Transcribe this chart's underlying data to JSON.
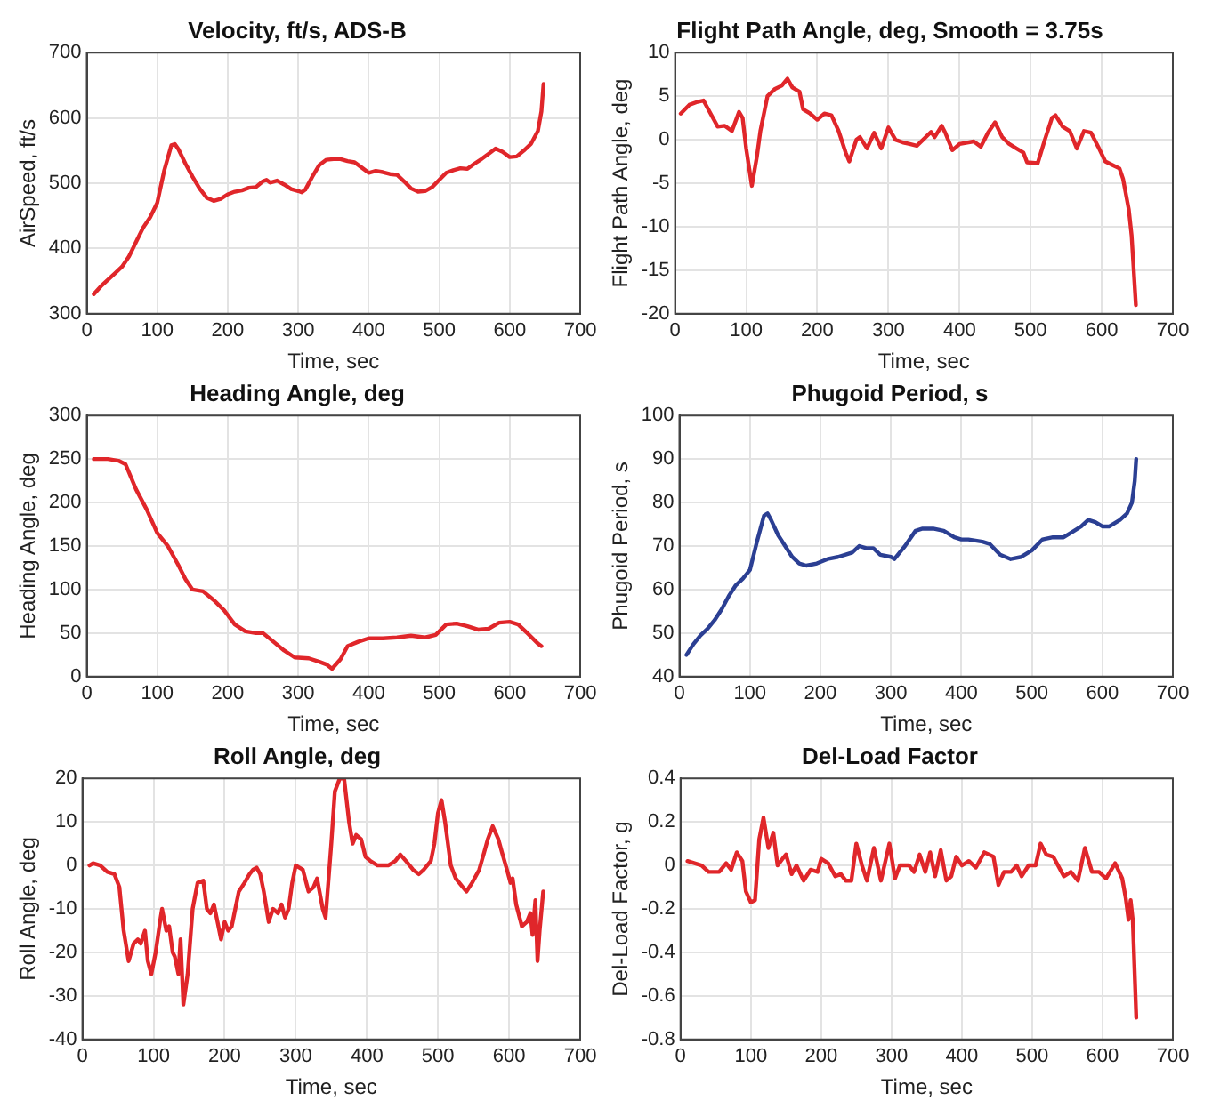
{
  "chart_data": [
    {
      "type": "line",
      "title": "Velocity, ft/s, ADS-B",
      "xlabel": "Time, sec",
      "ylabel": "AirSpeed, ft/s",
      "xlim": [
        0,
        700
      ],
      "xticks": [
        0,
        100,
        200,
        300,
        400,
        500,
        600,
        700
      ],
      "ylim": [
        300,
        700
      ],
      "yticks": [
        300,
        400,
        500,
        600,
        700
      ],
      "grid": true,
      "legend": false,
      "marker": "none",
      "series": [
        {
          "color": "#e0262a",
          "x": [
            10,
            20,
            30,
            40,
            50,
            60,
            70,
            80,
            90,
            100,
            110,
            120,
            125,
            130,
            140,
            150,
            160,
            170,
            180,
            190,
            200,
            210,
            220,
            230,
            240,
            250,
            255,
            260,
            270,
            280,
            290,
            300,
            305,
            310,
            320,
            330,
            340,
            350,
            360,
            370,
            380,
            390,
            400,
            410,
            420,
            430,
            440,
            450,
            460,
            470,
            480,
            490,
            500,
            510,
            520,
            530,
            540,
            550,
            560,
            570,
            580,
            590,
            600,
            610,
            620,
            630,
            640,
            645,
            648
          ],
          "values": [
            330,
            342,
            352,
            362,
            372,
            388,
            410,
            432,
            448,
            470,
            520,
            558,
            560,
            552,
            530,
            510,
            492,
            478,
            473,
            476,
            483,
            487,
            489,
            493,
            494,
            503,
            505,
            501,
            504,
            498,
            491,
            488,
            486,
            490,
            510,
            528,
            536,
            537,
            537,
            534,
            532,
            524,
            516,
            519,
            517,
            514,
            513,
            503,
            492,
            487,
            488,
            494,
            505,
            516,
            520,
            523,
            522,
            530,
            537,
            545,
            553,
            548,
            540,
            541,
            550,
            560,
            580,
            610,
            652
          ]
        }
      ]
    },
    {
      "type": "line",
      "title": "Flight Path Angle, deg, Smooth = 3.75s",
      "xlabel": "Time, sec",
      "ylabel": "Flight Path Angle, deg",
      "xlim": [
        0,
        700
      ],
      "xticks": [
        0,
        100,
        200,
        300,
        400,
        500,
        600,
        700
      ],
      "ylim": [
        -20,
        10
      ],
      "yticks": [
        -20,
        -15,
        -10,
        -5,
        0,
        5,
        10
      ],
      "grid": true,
      "legend": false,
      "marker": "none",
      "series": [
        {
          "color": "#e0262a",
          "x": [
            8,
            20,
            30,
            40,
            50,
            60,
            70,
            80,
            90,
            95,
            100,
            108,
            115,
            120,
            130,
            140,
            150,
            158,
            165,
            175,
            180,
            190,
            200,
            210,
            220,
            230,
            240,
            245,
            255,
            260,
            270,
            280,
            290,
            300,
            310,
            320,
            330,
            340,
            350,
            360,
            365,
            375,
            380,
            390,
            400,
            420,
            430,
            440,
            450,
            460,
            470,
            480,
            490,
            495,
            510,
            520,
            530,
            535,
            545,
            555,
            565,
            575,
            585,
            595,
            605,
            615,
            625,
            630,
            638,
            642,
            645,
            648
          ],
          "values": [
            3,
            4,
            4.3,
            4.5,
            3,
            1.5,
            1.6,
            1,
            3.2,
            2.5,
            -1,
            -5.3,
            -2,
            1,
            5,
            5.8,
            6.2,
            7,
            6,
            5.5,
            3.5,
            3,
            2.3,
            3,
            2.8,
            1,
            -1.5,
            -2.5,
            0,
            0.3,
            -1,
            0.8,
            -1,
            1.4,
            0,
            -0.3,
            -0.5,
            -0.7,
            0.1,
            0.9,
            0.3,
            1.6,
            0.8,
            -1.2,
            -0.5,
            -0.2,
            -0.8,
            0.8,
            2,
            0.3,
            -0.5,
            -1,
            -1.5,
            -2.6,
            -2.7,
            0,
            2.5,
            2.8,
            1.5,
            1,
            -1,
            1,
            0.8,
            -0.8,
            -2.5,
            -2.9,
            -3.3,
            -4.5,
            -8,
            -11,
            -15,
            -19
          ]
        }
      ]
    },
    {
      "type": "line",
      "title": "Heading Angle, deg",
      "xlabel": "Time, sec",
      "ylabel": "Heading Angle, deg",
      "xlim": [
        0,
        700
      ],
      "xticks": [
        0,
        100,
        200,
        300,
        400,
        500,
        600,
        700
      ],
      "ylim": [
        0,
        300
      ],
      "yticks": [
        0,
        50,
        100,
        150,
        200,
        250,
        300
      ],
      "grid": true,
      "legend": false,
      "marker": "none",
      "series": [
        {
          "color": "#e0262a",
          "x": [
            10,
            30,
            45,
            55,
            70,
            85,
            100,
            115,
            130,
            140,
            150,
            165,
            180,
            195,
            210,
            225,
            240,
            250,
            265,
            280,
            295,
            315,
            330,
            340,
            348,
            360,
            370,
            385,
            400,
            420,
            440,
            460,
            480,
            495,
            510,
            525,
            540,
            555,
            570,
            585,
            600,
            612,
            625,
            640,
            645
          ],
          "values": [
            250,
            250,
            248,
            244,
            215,
            192,
            165,
            150,
            128,
            112,
            100,
            98,
            88,
            76,
            60,
            52,
            50,
            50,
            40,
            30,
            22,
            21,
            17,
            14,
            9,
            20,
            35,
            40,
            44,
            44,
            45,
            47,
            45,
            48,
            60,
            61,
            58,
            54,
            55,
            62,
            63,
            60,
            50,
            38,
            35
          ]
        }
      ]
    },
    {
      "type": "line",
      "title": "Phugoid Period, s",
      "xlabel": "Time, sec",
      "ylabel": "Phugoid Period, s",
      "xlim": [
        0,
        700
      ],
      "xticks": [
        0,
        100,
        200,
        300,
        400,
        500,
        600,
        700
      ],
      "ylim": [
        40,
        100
      ],
      "yticks": [
        40,
        50,
        60,
        70,
        80,
        90,
        100
      ],
      "grid": true,
      "legend": false,
      "marker": "none",
      "series": [
        {
          "color": "#2b3f93",
          "x": [
            10,
            20,
            30,
            40,
            50,
            60,
            70,
            80,
            90,
            100,
            110,
            120,
            125,
            130,
            140,
            150,
            160,
            170,
            180,
            195,
            210,
            225,
            235,
            245,
            255,
            265,
            275,
            285,
            300,
            305,
            320,
            335,
            345,
            360,
            375,
            390,
            400,
            410,
            430,
            440,
            455,
            470,
            485,
            500,
            515,
            530,
            545,
            560,
            570,
            580,
            590,
            600,
            610,
            625,
            635,
            642,
            646,
            648
          ],
          "values": [
            45,
            47.5,
            49.5,
            51,
            53,
            55.5,
            58.5,
            61,
            62.5,
            64.5,
            71,
            77,
            77.5,
            76,
            72.5,
            70,
            67.5,
            66,
            65.5,
            66,
            67,
            67.5,
            68,
            68.5,
            70,
            69.5,
            69.5,
            68,
            67.5,
            67,
            70,
            73.5,
            74,
            74,
            73.5,
            72,
            71.5,
            71.5,
            71,
            70.5,
            68,
            67,
            67.5,
            69,
            71.5,
            72,
            72,
            73.5,
            74.5,
            76,
            75.5,
            74.5,
            74.5,
            76,
            77.5,
            80,
            85,
            90
          ]
        }
      ]
    },
    {
      "type": "line",
      "title": "Roll Angle, deg",
      "xlabel": "Time, sec",
      "ylabel": "Roll Angle, deg",
      "xlim": [
        0,
        700
      ],
      "xticks": [
        0,
        100,
        200,
        300,
        400,
        500,
        600,
        700
      ],
      "ylim": [
        -40,
        20
      ],
      "yticks": [
        -40,
        -30,
        -20,
        -10,
        0,
        10,
        20
      ],
      "grid": true,
      "legend": false,
      "marker": "none",
      "series": [
        {
          "color": "#e0262a",
          "x": [
            10,
            15,
            25,
            35,
            45,
            52,
            58,
            65,
            72,
            78,
            82,
            88,
            92,
            97,
            103,
            110,
            112,
            118,
            122,
            127,
            130,
            135,
            138,
            142,
            148,
            155,
            162,
            170,
            175,
            180,
            185,
            190,
            195,
            200,
            205,
            210,
            215,
            220,
            228,
            235,
            240,
            245,
            250,
            255,
            262,
            268,
            275,
            280,
            285,
            290,
            295,
            300,
            310,
            318,
            325,
            330,
            338,
            342,
            350,
            355,
            362,
            368,
            375,
            380,
            385,
            392,
            398,
            405,
            415,
            430,
            440,
            447,
            455,
            465,
            473,
            480,
            490,
            495,
            500,
            505,
            510,
            518,
            525,
            535,
            540,
            548,
            558,
            565,
            570,
            577,
            585,
            590,
            597,
            602,
            605,
            610,
            618,
            625,
            630,
            633,
            637,
            640,
            643,
            648
          ],
          "values": [
            0,
            0.5,
            0,
            -1.5,
            -2,
            -5,
            -15,
            -22,
            -18,
            -17,
            -18,
            -15,
            -22,
            -25,
            -20,
            -12,
            -10,
            -15,
            -14,
            -20,
            -21,
            -25,
            -17,
            -32,
            -25,
            -10,
            -4,
            -3.5,
            -10,
            -11,
            -9,
            -13,
            -17,
            -13,
            -15,
            -14,
            -10,
            -6,
            -4,
            -2,
            -1,
            -0.5,
            -2,
            -6,
            -13,
            -10,
            -11,
            -9,
            -12,
            -10,
            -4,
            0,
            -1,
            -6,
            -5,
            -3,
            -10,
            -12,
            5,
            17,
            20,
            20,
            10,
            5,
            7,
            6,
            2,
            1,
            0,
            0,
            1,
            2.5,
            1,
            -1,
            -2,
            -1,
            1,
            5,
            12,
            15,
            10,
            0,
            -3,
            -5,
            -6,
            -4,
            -1,
            3,
            6,
            9,
            6,
            3,
            -1,
            -4,
            -3,
            -9,
            -14,
            -13,
            -11,
            -16,
            -8,
            -22,
            -15,
            -6
          ]
        }
      ]
    },
    {
      "type": "line",
      "title": "Del-Load Factor",
      "xlabel": "Time, sec",
      "ylabel": "Del-Load Factor, g",
      "xlim": [
        0,
        700
      ],
      "xticks": [
        0,
        100,
        200,
        300,
        400,
        500,
        600,
        700
      ],
      "ylim": [
        -0.8,
        0.4
      ],
      "yticks": [
        -0.8,
        -0.6,
        -0.4,
        -0.2,
        0,
        0.2,
        0.4
      ],
      "grid": true,
      "legend": false,
      "marker": "none",
      "series": [
        {
          "color": "#e0262a",
          "x": [
            10,
            20,
            30,
            40,
            55,
            65,
            72,
            80,
            88,
            93,
            100,
            106,
            112,
            118,
            125,
            132,
            138,
            145,
            150,
            158,
            165,
            175,
            185,
            195,
            200,
            210,
            220,
            228,
            235,
            243,
            250,
            258,
            265,
            275,
            285,
            297,
            305,
            312,
            325,
            332,
            340,
            348,
            355,
            362,
            370,
            378,
            385,
            392,
            400,
            410,
            420,
            432,
            445,
            452,
            460,
            470,
            478,
            485,
            495,
            505,
            512,
            520,
            530,
            545,
            555,
            565,
            575,
            585,
            595,
            605,
            618,
            628,
            633,
            637,
            640,
            643,
            648
          ],
          "values": [
            0.02,
            0.01,
            0,
            -0.03,
            -0.03,
            0.01,
            -0.02,
            0.06,
            0.02,
            -0.12,
            -0.17,
            -0.16,
            0.12,
            0.22,
            0.08,
            0.15,
            0,
            0.03,
            0.05,
            -0.04,
            0,
            -0.07,
            -0.02,
            -0.03,
            0.03,
            0.01,
            -0.05,
            -0.04,
            -0.07,
            -0.07,
            0.1,
            0,
            -0.07,
            0.08,
            -0.07,
            0.1,
            -0.06,
            0,
            0,
            -0.03,
            0.05,
            -0.03,
            0.06,
            -0.05,
            0.07,
            -0.07,
            -0.05,
            0.04,
            0,
            0.02,
            -0.01,
            0.06,
            0.04,
            -0.09,
            -0.03,
            -0.03,
            0,
            -0.05,
            0,
            0,
            0.1,
            0.05,
            0.04,
            -0.05,
            -0.03,
            -0.07,
            0.08,
            -0.03,
            -0.03,
            -0.06,
            0.01,
            -0.06,
            -0.15,
            -0.25,
            -0.16,
            -0.25,
            -0.7
          ]
        }
      ]
    }
  ]
}
